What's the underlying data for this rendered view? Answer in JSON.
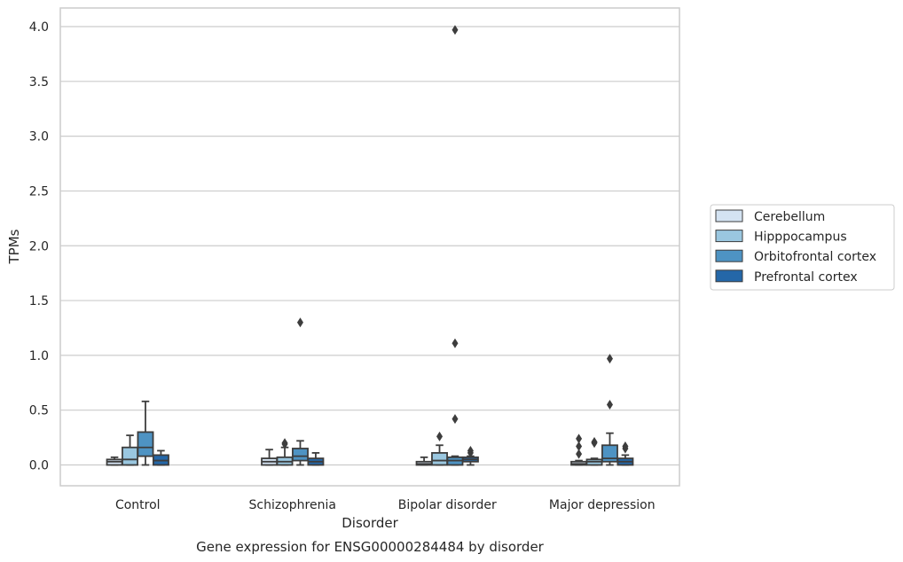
{
  "caption": "Gene expression for ENSG00000284484 by disorder",
  "colors": {
    "Cerebellum": "#d4e3f2",
    "Hipppocampus": "#9ac7e0",
    "Orbitofrontal cortex": "#4e93c3",
    "Prefrontal cortex": "#2467a8",
    "line": "#3d3d3d",
    "grid": "#cccccc",
    "spine": "#cccccc"
  },
  "chart_data": {
    "type": "box",
    "title": "",
    "xlabel": "Disorder",
    "ylabel": "TPMs",
    "ylim": [
      -0.19,
      4.17
    ],
    "yticks": [
      0.0,
      0.5,
      1.0,
      1.5,
      2.0,
      2.5,
      3.0,
      3.5,
      4.0
    ],
    "ytick_labels": [
      "0.0",
      "0.5",
      "1.0",
      "1.5",
      "2.0",
      "2.5",
      "3.0",
      "3.5",
      "4.0"
    ],
    "grid": "horizontal",
    "legend_position": "right",
    "categories": [
      "Control",
      "Schizophrenia",
      "Bipolar disorder",
      "Major depression"
    ],
    "series": [
      {
        "name": "Cerebellum",
        "boxes": [
          {
            "min": 0.0,
            "q1": 0.0,
            "median": 0.03,
            "q3": 0.05,
            "max": 0.07,
            "outliers": []
          },
          {
            "min": 0.0,
            "q1": 0.0,
            "median": 0.03,
            "q3": 0.06,
            "max": 0.14,
            "outliers": []
          },
          {
            "min": 0.0,
            "q1": 0.0,
            "median": 0.01,
            "q3": 0.03,
            "max": 0.07,
            "outliers": []
          },
          {
            "min": 0.0,
            "q1": 0.0,
            "median": 0.01,
            "q3": 0.03,
            "max": 0.04,
            "outliers": [
              0.1,
              0.17,
              0.24
            ]
          }
        ]
      },
      {
        "name": "Hipppocampus",
        "boxes": [
          {
            "min": 0.0,
            "q1": 0.0,
            "median": 0.05,
            "q3": 0.16,
            "max": 0.27,
            "outliers": []
          },
          {
            "min": 0.0,
            "q1": 0.0,
            "median": 0.03,
            "q3": 0.07,
            "max": 0.16,
            "outliers": [
              0.19,
              0.2
            ]
          },
          {
            "min": 0.0,
            "q1": 0.0,
            "median": 0.04,
            "q3": 0.11,
            "max": 0.18,
            "outliers": [
              0.26
            ]
          },
          {
            "min": 0.0,
            "q1": 0.0,
            "median": 0.03,
            "q3": 0.05,
            "max": 0.06,
            "outliers": [
              0.2,
              0.21
            ]
          }
        ]
      },
      {
        "name": "Orbitofrontal cortex",
        "boxes": [
          {
            "min": 0.0,
            "q1": 0.08,
            "median": 0.16,
            "q3": 0.3,
            "max": 0.58,
            "outliers": []
          },
          {
            "min": 0.0,
            "q1": 0.04,
            "median": 0.08,
            "q3": 0.15,
            "max": 0.22,
            "outliers": [
              1.3
            ]
          },
          {
            "min": 0.0,
            "q1": 0.0,
            "median": 0.04,
            "q3": 0.07,
            "max": 0.08,
            "outliers": [
              0.42,
              1.11,
              3.97
            ]
          },
          {
            "min": 0.0,
            "q1": 0.03,
            "median": 0.06,
            "q3": 0.18,
            "max": 0.29,
            "outliers": [
              0.55,
              0.97
            ]
          }
        ]
      },
      {
        "name": "Prefrontal cortex",
        "boxes": [
          {
            "min": 0.0,
            "q1": 0.0,
            "median": 0.04,
            "q3": 0.09,
            "max": 0.13,
            "outliers": []
          },
          {
            "min": 0.0,
            "q1": 0.0,
            "median": 0.03,
            "q3": 0.06,
            "max": 0.11,
            "outliers": []
          },
          {
            "min": 0.0,
            "q1": 0.03,
            "median": 0.05,
            "q3": 0.07,
            "max": 0.08,
            "outliers": [
              0.11,
              0.13
            ]
          },
          {
            "min": 0.0,
            "q1": 0.0,
            "median": 0.03,
            "q3": 0.06,
            "max": 0.09,
            "outliers": [
              0.15,
              0.17
            ]
          }
        ]
      }
    ]
  }
}
